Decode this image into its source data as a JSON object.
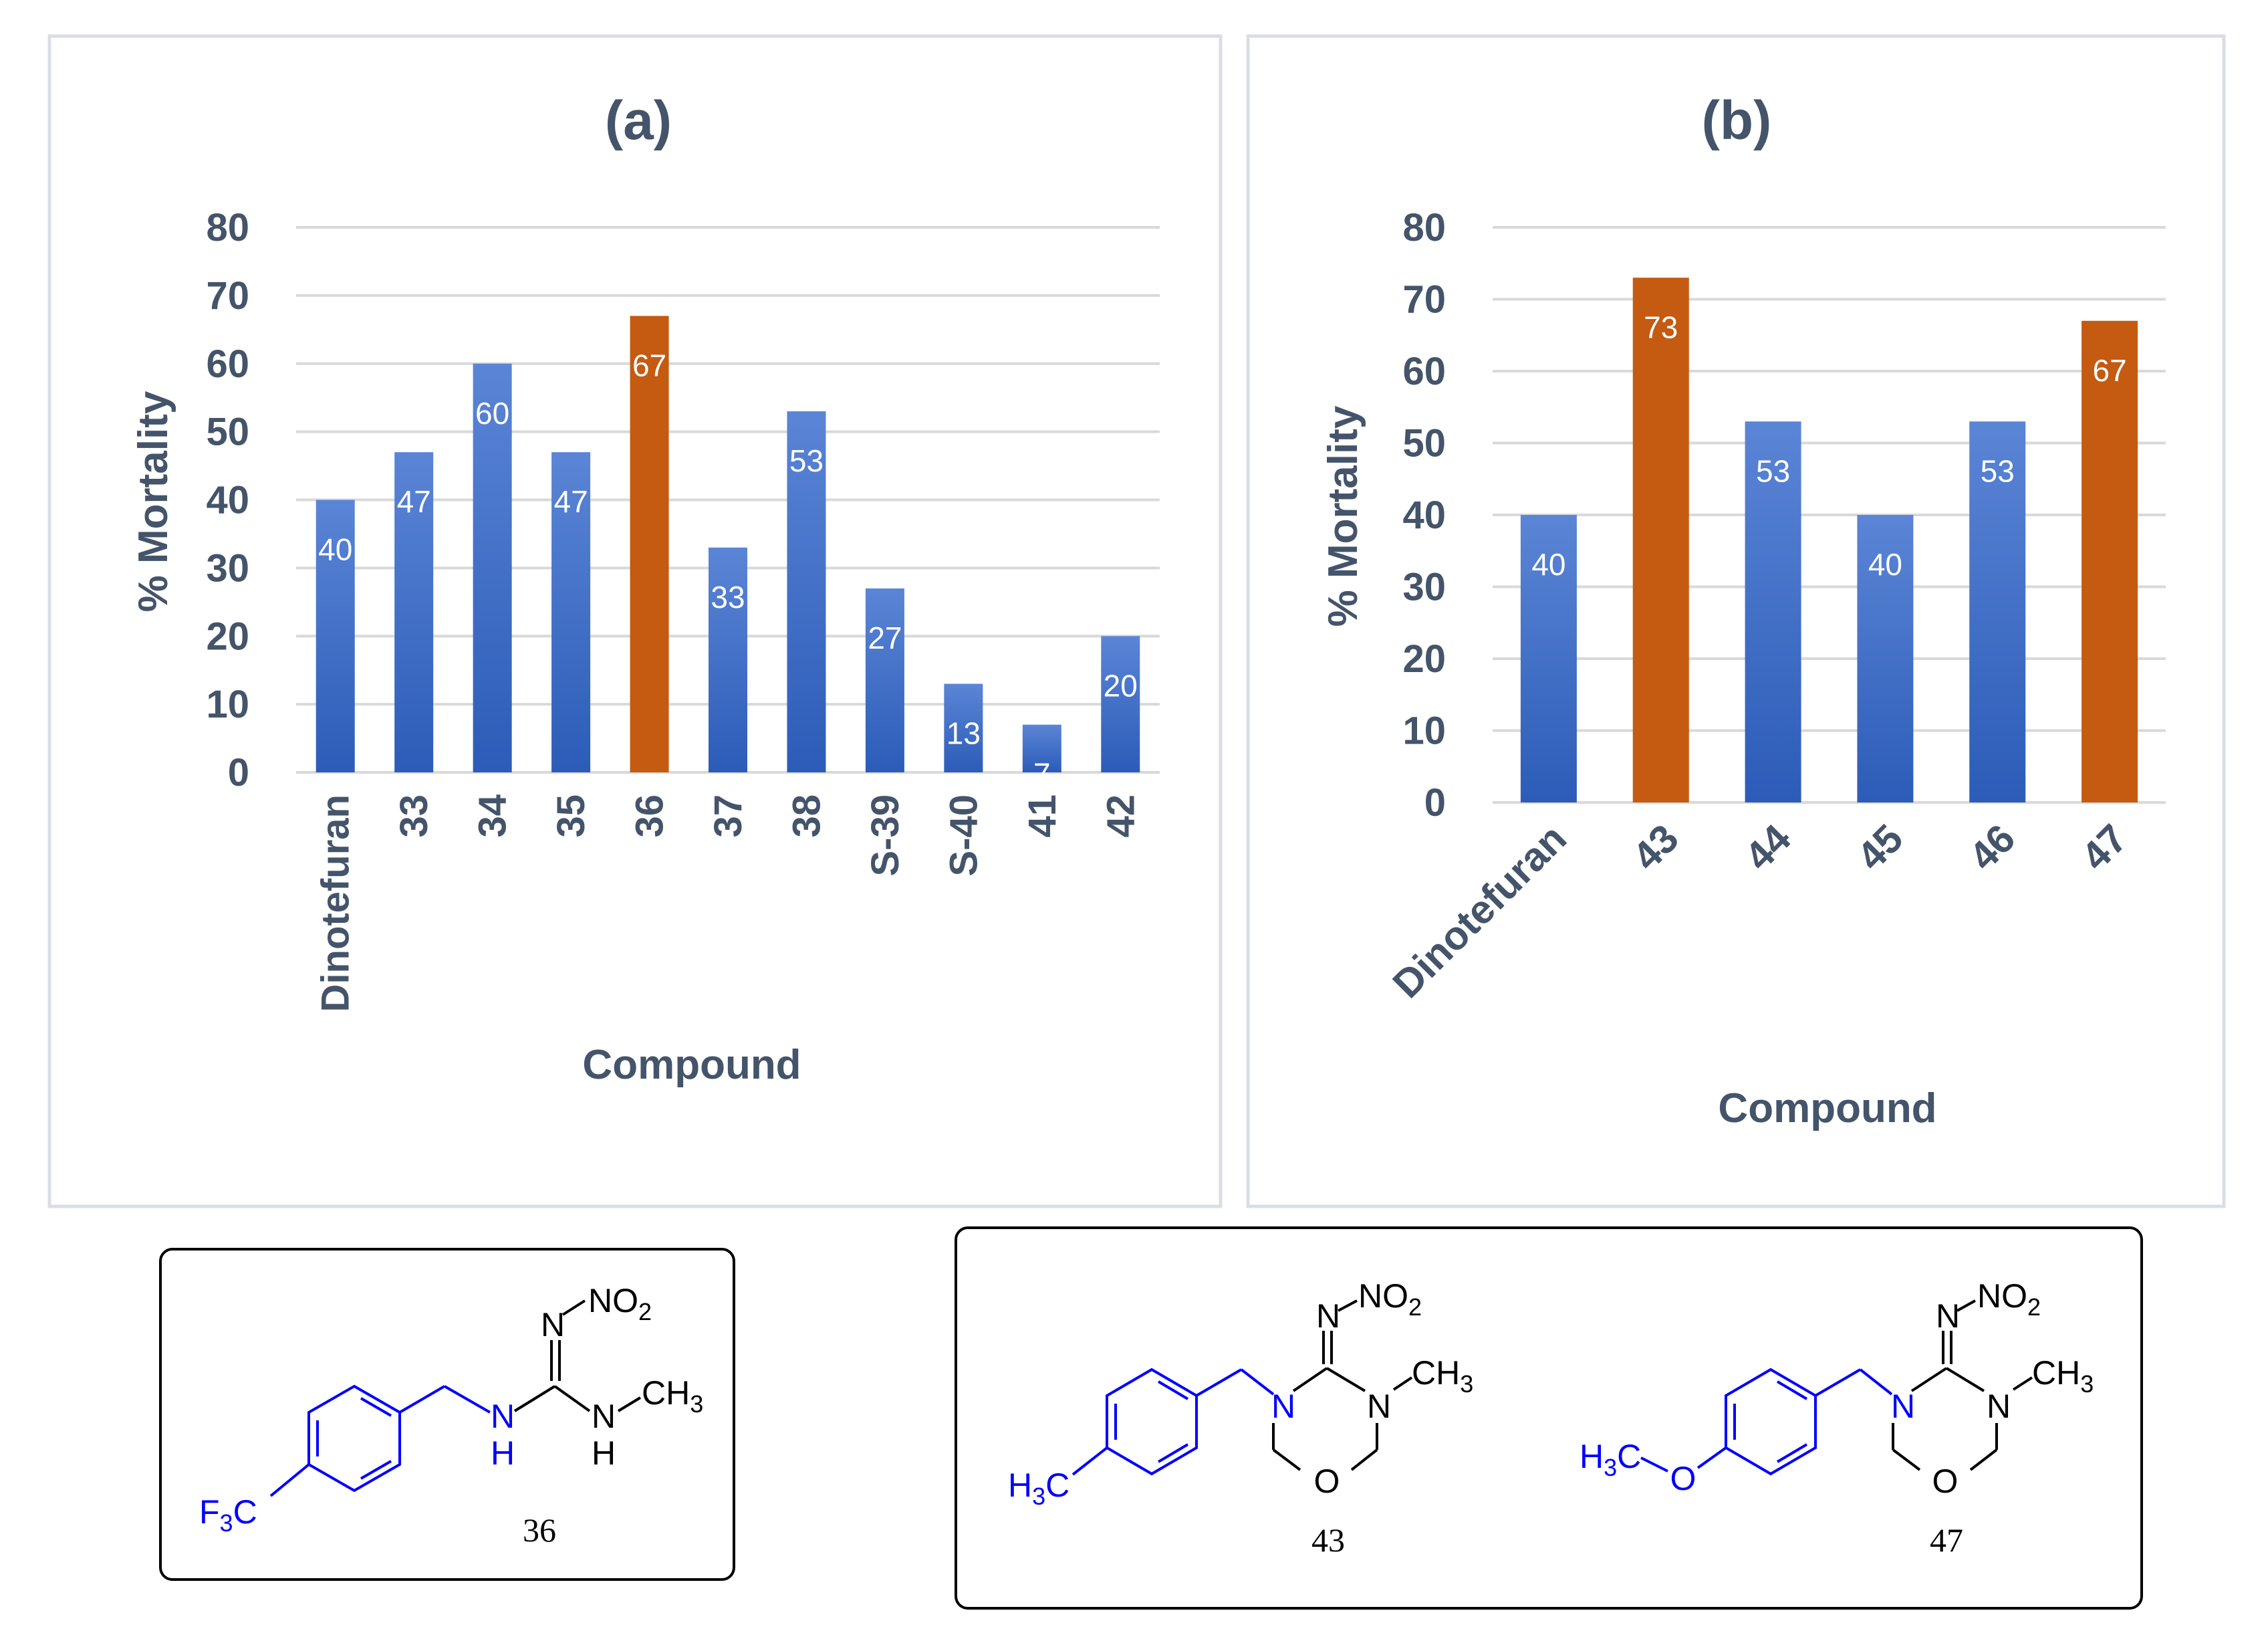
{
  "colors": {
    "blue_top": "#5B85D6",
    "blue_bottom": "#2C5CB8",
    "orange": "#C55A11",
    "axis_text": "#44546A",
    "grid": "#D9D9D9",
    "panel_border": "#D9DEE6",
    "bar_label": "#FFFFFF",
    "chem_blue": "#0000FF",
    "chem_black": "#000000"
  },
  "chart_data": [
    {
      "panel": "a",
      "type": "bar",
      "title": "(a)",
      "xlabel": "Compound",
      "ylabel": "% Mortality",
      "ylim": [
        0,
        80
      ],
      "yticks": [
        "0",
        "10",
        "20",
        "30",
        "40",
        "50",
        "60",
        "70",
        "80"
      ],
      "grid": true,
      "categories": [
        "Dinotefuran",
        "33",
        "34",
        "35",
        "36",
        "37",
        "38",
        "S-39",
        "S-40",
        "41",
        "42"
      ],
      "values": [
        40,
        47,
        60,
        47,
        67,
        33,
        53,
        27,
        13,
        7,
        20
      ],
      "labels": [
        "40",
        "47",
        "60",
        "47",
        "67",
        "33",
        "53",
        "27",
        "13",
        "7",
        "20"
      ],
      "highlight": [
        false,
        false,
        false,
        false,
        true,
        false,
        false,
        false,
        false,
        false,
        false
      ]
    },
    {
      "panel": "b",
      "type": "bar",
      "title": "(b)",
      "xlabel": "Compound",
      "ylabel": "% Mortality",
      "ylim": [
        0,
        80
      ],
      "yticks": [
        "0",
        "10",
        "20",
        "30",
        "40",
        "50",
        "60",
        "70",
        "80"
      ],
      "grid": true,
      "categories": [
        "Dinotefuran",
        "43",
        "44",
        "45",
        "46",
        "47"
      ],
      "values": [
        40,
        73,
        53,
        40,
        53,
        67
      ],
      "labels": [
        "40",
        "73",
        "53",
        "40",
        "53",
        "67"
      ],
      "highlight": [
        false,
        true,
        false,
        false,
        false,
        true
      ]
    }
  ],
  "structures": {
    "s36": {
      "number": "36",
      "atoms": {
        "nitro": "NO",
        "nitro_sub": "2",
        "imine_n": "N",
        "nh_left_n": "N",
        "nh_left_h": "H",
        "nh_right_n": "N",
        "nh_right_h": "H",
        "methyl": "CH",
        "methyl_sub": "3",
        "cf3_f": "F",
        "cf3_sub": "3",
        "cf3_c": "C"
      }
    },
    "s43": {
      "number": "43",
      "atoms": {
        "nitro": "NO",
        "nitro_sub": "2",
        "imine_n": "N",
        "ring_n_left": "N",
        "ring_n_right": "N",
        "ring_o": "O",
        "methyl": "CH",
        "methyl_sub": "3",
        "h3c_h": "H",
        "h3c_sub": "3",
        "h3c_c": "C"
      }
    },
    "s47": {
      "number": "47",
      "atoms": {
        "nitro": "NO",
        "nitro_sub": "2",
        "imine_n": "N",
        "ring_n_left": "N",
        "ring_n_right": "N",
        "ring_o": "O",
        "methyl": "CH",
        "methyl_sub": "3",
        "h3c_h": "H",
        "h3c_sub": "3",
        "h3c_c": "C",
        "ether_o": "O"
      }
    }
  }
}
